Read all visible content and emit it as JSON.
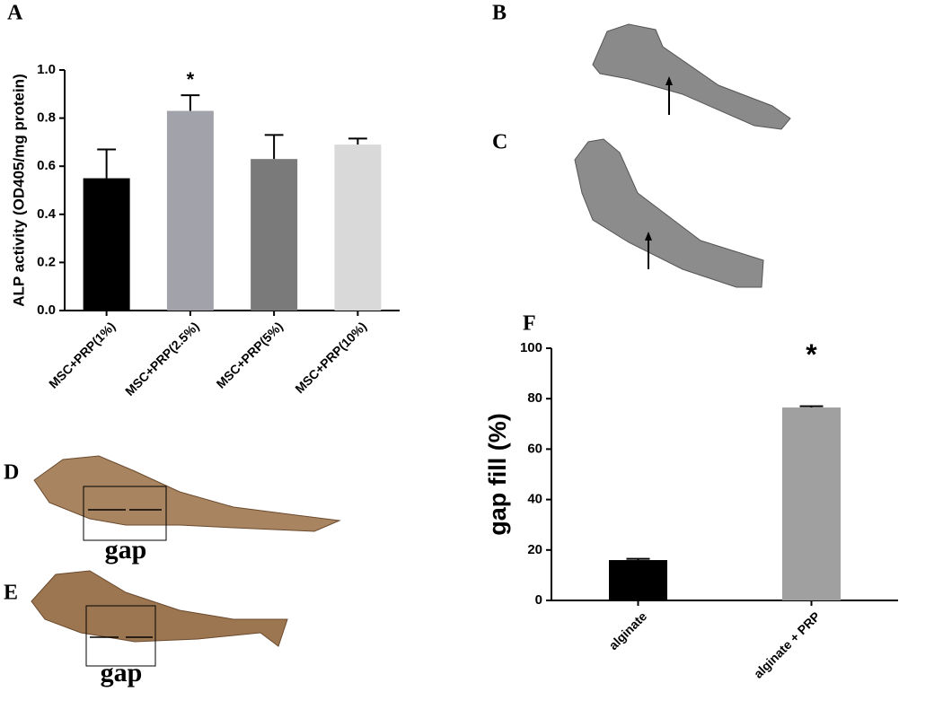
{
  "chart_data": [
    {
      "type": "bar",
      "panel": "A",
      "ylabel": "ALP activity (OD405/mg protein)",
      "categories": [
        "MSC+PRP(1%)",
        "MSC+PRP(2.5%)",
        "MSC+PRP(5%)",
        "MSC+PRP(10%)"
      ],
      "values": [
        0.55,
        0.83,
        0.63,
        0.69
      ],
      "errors": [
        0.12,
        0.065,
        0.1,
        0.025
      ],
      "colors": [
        "#000000",
        "#a2a2aa",
        "#7a7a7a",
        "#d9d9d9"
      ],
      "ylim": [
        0,
        1
      ],
      "yticks": [
        {
          "value": 0,
          "label": "0.0"
        },
        0.2,
        0.4,
        0.6,
        0.8,
        {
          "value": 1,
          "label": "1.0"
        }
      ],
      "annotation": "*"
    },
    {
      "type": "bar",
      "panel": "F",
      "ylabel": "gap fill (%)",
      "categories": [
        "alginate",
        "alginate + PRP"
      ],
      "values": [
        16,
        76.5
      ],
      "errors": [
        0.5,
        0.5
      ],
      "colors": [
        "#000000",
        "#a0a0a0"
      ],
      "ylim": [
        0,
        100
      ],
      "yticks": [
        0,
        20,
        40,
        60,
        80,
        100
      ],
      "annotation": "*"
    }
  ],
  "images": [
    {
      "panel": "B"
    },
    {
      "panel": "C"
    },
    {
      "panel": "D",
      "label": "gap"
    },
    {
      "panel": "E",
      "label": "gap"
    }
  ]
}
